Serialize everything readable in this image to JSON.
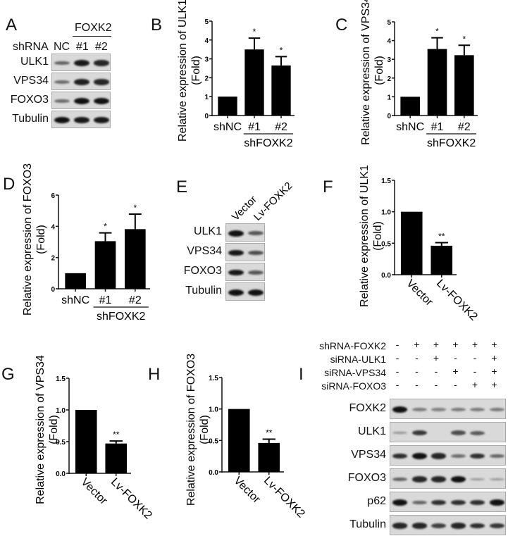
{
  "panels": {
    "A": {
      "letter": "A",
      "group_label": "FOXK2",
      "row_header": "shRNA",
      "lanes": [
        "NC",
        "#1",
        "#2"
      ],
      "rows": [
        {
          "label": "ULK1",
          "bands": [
            0.45,
            0.95,
            0.85
          ]
        },
        {
          "label": "VPS34",
          "bands": [
            0.4,
            0.9,
            0.85
          ]
        },
        {
          "label": "FOXO3",
          "bands": [
            0.4,
            1.0,
            1.0
          ]
        },
        {
          "label": "Tubulin",
          "bands": [
            1.0,
            0.95,
            0.95
          ]
        }
      ]
    },
    "B": {
      "letter": "B"
    },
    "C": {
      "letter": "C"
    },
    "D": {
      "letter": "D"
    },
    "E": {
      "letter": "E",
      "lanes": [
        "Vector",
        "Lv-FOXK2"
      ],
      "rows": [
        {
          "label": "ULK1",
          "bands": [
            1.0,
            0.55
          ]
        },
        {
          "label": "VPS34",
          "bands": [
            0.95,
            0.6
          ]
        },
        {
          "label": "FOXO3",
          "bands": [
            0.95,
            0.55
          ]
        },
        {
          "label": "Tubulin",
          "bands": [
            1.0,
            1.0
          ]
        }
      ]
    },
    "F": {
      "letter": "F"
    },
    "G": {
      "letter": "G"
    },
    "H": {
      "letter": "H"
    },
    "I": {
      "letter": "I",
      "conditions": [
        {
          "label": "shRNA-FOXK2",
          "signs": [
            "-",
            "+",
            "+",
            "+",
            "+",
            "+"
          ]
        },
        {
          "label": "siRNA-ULK1",
          "signs": [
            "-",
            "-",
            "+",
            "-",
            "-",
            "+"
          ]
        },
        {
          "label": "siRNA-VPS34",
          "signs": [
            "-",
            "-",
            "-",
            "+",
            "-",
            "+"
          ]
        },
        {
          "label": "siRNA-FOXO3",
          "signs": [
            "-",
            "-",
            "-",
            "-",
            "+",
            "+"
          ]
        }
      ],
      "rows": [
        {
          "label": "FOXK2",
          "bands": [
            1.0,
            0.3,
            0.25,
            0.3,
            0.3,
            0.3
          ]
        },
        {
          "label": "ULK1",
          "bands": [
            0.15,
            0.75,
            0.0,
            0.6,
            0.5,
            0.0
          ]
        },
        {
          "label": "VPS34",
          "bands": [
            0.8,
            1.0,
            0.85,
            0.4,
            0.8,
            0.45
          ]
        },
        {
          "label": "FOXO3",
          "bands": [
            0.45,
            0.85,
            0.85,
            1.0,
            0.1,
            0.1
          ]
        },
        {
          "label": "p62",
          "bands": [
            1.0,
            0.45,
            0.8,
            0.8,
            0.8,
            1.0
          ]
        },
        {
          "label": "Tubulin",
          "bands": [
            0.85,
            0.85,
            0.7,
            0.85,
            0.8,
            0.75
          ]
        }
      ]
    }
  },
  "chart_data": [
    {
      "panel": "B",
      "type": "bar",
      "ylabel": "Relative expression of ULK1 (Fold)",
      "ylabel_line1": "Relative expression of ULK1",
      "ylabel_line2": "(Fold)",
      "categories": [
        "shNC",
        "#1",
        "#2"
      ],
      "group_label": "shFOXK2",
      "values": [
        1.0,
        3.5,
        2.65
      ],
      "error_upper": [
        null,
        4.1,
        3.12
      ],
      "significance": [
        "",
        "*",
        "*"
      ],
      "ylim": [
        0,
        5
      ],
      "yticks": [
        "0",
        "1",
        "2",
        "3",
        "4",
        "5"
      ]
    },
    {
      "panel": "C",
      "type": "bar",
      "ylabel": "Relative expression of VPS34 (Fold)",
      "ylabel_line1": "Relative expression of VPS34",
      "ylabel_line2": "(Fold)",
      "categories": [
        "shNC",
        "#1",
        "#2"
      ],
      "group_label": "shFOXK2",
      "values": [
        1.0,
        3.55,
        3.22
      ],
      "error_upper": [
        null,
        4.15,
        3.75
      ],
      "significance": [
        "",
        "*",
        "*"
      ],
      "ylim": [
        0,
        5
      ],
      "yticks": [
        "0",
        "1",
        "2",
        "3",
        "4",
        "5"
      ]
    },
    {
      "panel": "D",
      "type": "bar",
      "ylabel": "Relative expression of FOXO3 (Fold)",
      "ylabel_line1": "Relative expression of FOXO3",
      "ylabel_line2": "(Fold)",
      "categories": [
        "shNC",
        "#1",
        "#2"
      ],
      "group_label": "shFOXK2",
      "values": [
        1.0,
        3.05,
        3.82
      ],
      "error_upper": [
        null,
        3.58,
        4.78
      ],
      "significance": [
        "",
        "*",
        "*"
      ],
      "ylim": [
        0,
        6
      ],
      "yticks": [
        "0",
        "2",
        "4",
        "6"
      ]
    },
    {
      "panel": "F",
      "type": "bar",
      "ylabel": "Relative expression of ULK1 (Fold)",
      "ylabel_line1": "Relative expression of ULK1",
      "ylabel_line2": "(Fold)",
      "categories": [
        "Vector",
        "Lv-FOXK2"
      ],
      "values": [
        1.0,
        0.46
      ],
      "error_upper": [
        null,
        0.51
      ],
      "significance": [
        "",
        "**"
      ],
      "ylim": [
        0,
        1.5
      ],
      "yticks": [
        "0.0",
        "0.5",
        "1.0",
        "1.5"
      ]
    },
    {
      "panel": "G",
      "type": "bar",
      "ylabel": "Relative expression of VPS34 (Fold)",
      "ylabel_line1": "Relative expression of VPS34",
      "ylabel_line2": "(Fold)",
      "categories": [
        "Vector",
        "Lv-FOXK2"
      ],
      "values": [
        1.0,
        0.47
      ],
      "error_upper": [
        null,
        0.51
      ],
      "significance": [
        "",
        "**"
      ],
      "ylim": [
        0,
        1.5
      ],
      "yticks": [
        "0.0",
        "0.5",
        "1.0",
        "1.5"
      ]
    },
    {
      "panel": "H",
      "type": "bar",
      "ylabel": "Relative expression of FOXO3 (Fold)",
      "ylabel_line1": "Relative expression of FOXO3",
      "ylabel_line2": "(Fold)",
      "categories": [
        "Vector",
        "Lv-FOXK2"
      ],
      "values": [
        1.0,
        0.46
      ],
      "error_upper": [
        null,
        0.52
      ],
      "significance": [
        "",
        "**"
      ],
      "ylim": [
        0,
        1.5
      ],
      "yticks": [
        "0.0",
        "0.5",
        "1.0",
        "1.5"
      ]
    }
  ]
}
